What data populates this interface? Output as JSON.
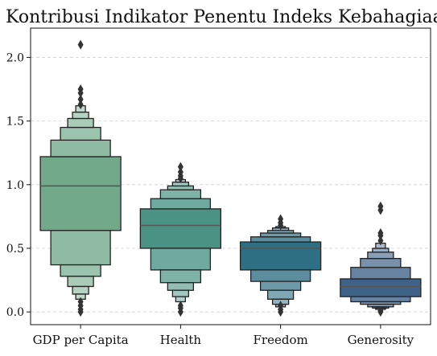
{
  "chart_data": {
    "type": "boxen",
    "title": "Kontribusi Indikator Penentu Indeks Kebahagiaan",
    "xlabel": "",
    "ylabel": "",
    "ylim": [
      -0.1,
      2.23
    ],
    "grid": "horizontal dashed",
    "y_ticks": [
      0.0,
      0.5,
      1.0,
      1.5,
      2.0
    ],
    "y_tick_labels": [
      "0.0",
      "0.5",
      "1.0",
      "1.5",
      "2.0"
    ],
    "categories": [
      "GDP per Capita",
      "Health",
      "Freedom",
      "Generosity"
    ],
    "series": [
      {
        "category": "GDP per Capita",
        "color": "#72a98a",
        "median": 0.99,
        "levels": [
          [
            0.64,
            1.22
          ],
          [
            0.37,
            1.35
          ],
          [
            0.28,
            1.45
          ],
          [
            0.2,
            1.52
          ],
          [
            0.14,
            1.57
          ],
          [
            0.1,
            1.62
          ]
        ],
        "outliers": [
          0.0,
          0.02,
          0.05,
          0.08,
          1.63,
          1.67,
          1.72,
          1.75,
          2.1
        ]
      },
      {
        "category": "Health",
        "color": "#4a9283",
        "median": 0.68,
        "levels": [
          [
            0.5,
            0.81
          ],
          [
            0.33,
            0.89
          ],
          [
            0.23,
            0.96
          ],
          [
            0.17,
            0.99
          ],
          [
            0.12,
            1.02
          ],
          [
            0.08,
            1.04
          ]
        ],
        "outliers": [
          0.0,
          0.03,
          0.05,
          1.05,
          1.07,
          1.1,
          1.14
        ]
      },
      {
        "category": "Freedom",
        "color": "#2f6f84",
        "median": 0.5,
        "levels": [
          [
            0.33,
            0.55
          ],
          [
            0.24,
            0.59
          ],
          [
            0.17,
            0.62
          ],
          [
            0.1,
            0.64
          ],
          [
            0.06,
            0.66
          ],
          [
            0.04,
            0.67
          ]
        ],
        "outliers": [
          0.0,
          0.02,
          0.05,
          0.68,
          0.7,
          0.73
        ]
      },
      {
        "category": "Generosity",
        "color": "#3f6288",
        "median": 0.2,
        "levels": [
          [
            0.12,
            0.26
          ],
          [
            0.08,
            0.35
          ],
          [
            0.06,
            0.42
          ],
          [
            0.04,
            0.47
          ],
          [
            0.03,
            0.5
          ],
          [
            0.02,
            0.54
          ]
        ],
        "outliers": [
          0.0,
          0.01,
          0.56,
          0.6,
          0.62,
          0.8,
          0.83
        ]
      }
    ]
  }
}
